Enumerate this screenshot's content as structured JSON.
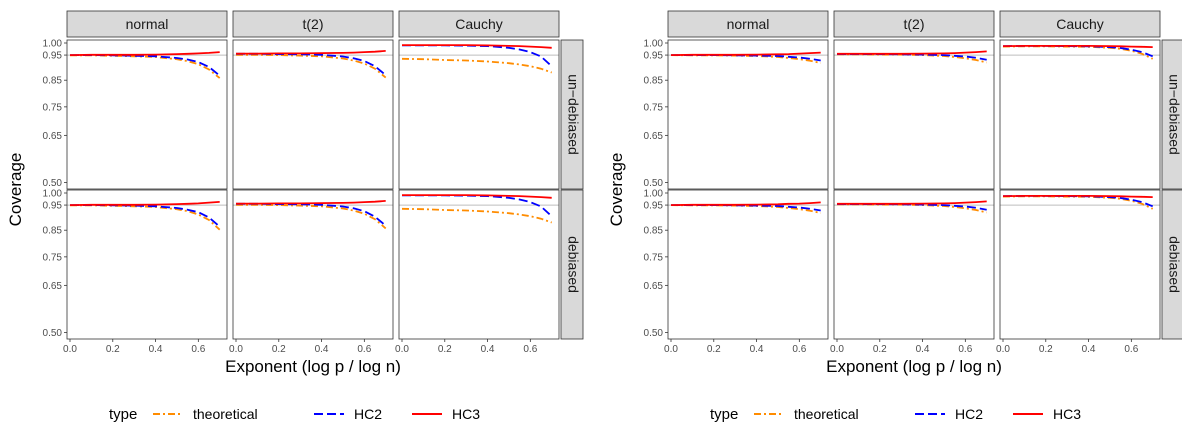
{
  "colors": {
    "theoretical": "#FF8C00",
    "HC2": "#0000FF",
    "HC3": "#FF0000",
    "strip_bg": "#D9D9D9",
    "reference_line": "#BEBEBE"
  },
  "chart_data": [
    {
      "type": "line",
      "facets": {
        "columns": [
          "normal",
          "t(2)",
          "Cauchy"
        ],
        "rows": [
          "un−debiased",
          "debiased"
        ]
      },
      "xlabel": "Exponent (log p / log n)",
      "ylabel": "Coverage",
      "xlim": [
        0,
        0.72
      ],
      "xticks": [
        "0.0",
        "0.2",
        "0.4",
        "0.6"
      ],
      "y_scale": "sqrt",
      "ylim": [
        0.49,
        1.0
      ],
      "yticks": [
        "0.50",
        "0.65",
        "0.75",
        "0.85",
        "0.95",
        "1.00"
      ],
      "reference_line": 0.95,
      "legend": {
        "title": "type",
        "entries": [
          "theoretical",
          "HC2",
          "HC3"
        ],
        "position": "bottom"
      },
      "x": [
        0.0,
        0.1,
        0.2,
        0.3,
        0.4,
        0.5,
        0.55,
        0.6,
        0.65,
        0.7
      ],
      "panels": [
        {
          "row": "un−debiased",
          "col": "normal",
          "series": [
            {
              "name": "theoretical",
              "values": [
                0.949,
                0.949,
                0.947,
                0.945,
                0.942,
                0.933,
                0.925,
                0.913,
                0.892,
                0.858
              ]
            },
            {
              "name": "HC2",
              "values": [
                0.95,
                0.95,
                0.949,
                0.947,
                0.945,
                0.938,
                0.932,
                0.922,
                0.902,
                0.868
              ]
            },
            {
              "name": "HC3",
              "values": [
                0.95,
                0.951,
                0.951,
                0.951,
                0.952,
                0.954,
                0.955,
                0.957,
                0.959,
                0.962
              ]
            }
          ]
        },
        {
          "row": "un−debiased",
          "col": "t(2)",
          "series": [
            {
              "name": "theoretical",
              "values": [
                0.951,
                0.951,
                0.95,
                0.948,
                0.945,
                0.936,
                0.928,
                0.916,
                0.895,
                0.86
              ]
            },
            {
              "name": "HC2",
              "values": [
                0.955,
                0.955,
                0.954,
                0.953,
                0.951,
                0.944,
                0.937,
                0.926,
                0.905,
                0.87
              ]
            },
            {
              "name": "HC3",
              "values": [
                0.956,
                0.956,
                0.957,
                0.957,
                0.958,
                0.959,
                0.96,
                0.962,
                0.964,
                0.967
              ]
            }
          ]
        },
        {
          "row": "un−debiased",
          "col": "Cauchy",
          "series": [
            {
              "name": "theoretical",
              "values": [
                0.935,
                0.933,
                0.93,
                0.928,
                0.924,
                0.917,
                0.912,
                0.905,
                0.895,
                0.88
              ]
            },
            {
              "name": "HC2",
              "values": [
                0.99,
                0.99,
                0.99,
                0.989,
                0.987,
                0.98,
                0.973,
                0.962,
                0.944,
                0.905
              ]
            },
            {
              "name": "HC3",
              "values": [
                0.991,
                0.991,
                0.991,
                0.991,
                0.99,
                0.988,
                0.987,
                0.985,
                0.983,
                0.98
              ]
            }
          ]
        },
        {
          "row": "debiased",
          "col": "normal",
          "series": [
            {
              "name": "theoretical",
              "values": [
                0.949,
                0.949,
                0.947,
                0.945,
                0.942,
                0.933,
                0.925,
                0.912,
                0.89,
                0.852
              ]
            },
            {
              "name": "HC2",
              "values": [
                0.95,
                0.95,
                0.949,
                0.948,
                0.945,
                0.938,
                0.931,
                0.921,
                0.9,
                0.864
              ]
            },
            {
              "name": "HC3",
              "values": [
                0.95,
                0.951,
                0.951,
                0.951,
                0.952,
                0.954,
                0.955,
                0.957,
                0.96,
                0.963
              ]
            }
          ]
        },
        {
          "row": "debiased",
          "col": "t(2)",
          "series": [
            {
              "name": "theoretical",
              "values": [
                0.951,
                0.951,
                0.95,
                0.948,
                0.945,
                0.936,
                0.928,
                0.915,
                0.893,
                0.857
              ]
            },
            {
              "name": "HC2",
              "values": [
                0.955,
                0.955,
                0.954,
                0.953,
                0.951,
                0.944,
                0.937,
                0.925,
                0.903,
                0.868
              ]
            },
            {
              "name": "HC3",
              "values": [
                0.956,
                0.956,
                0.957,
                0.957,
                0.958,
                0.959,
                0.96,
                0.962,
                0.964,
                0.967
              ]
            }
          ]
        },
        {
          "row": "debiased",
          "col": "Cauchy",
          "series": [
            {
              "name": "theoretical",
              "values": [
                0.935,
                0.933,
                0.93,
                0.928,
                0.924,
                0.917,
                0.912,
                0.905,
                0.895,
                0.88
              ]
            },
            {
              "name": "HC2",
              "values": [
                0.99,
                0.99,
                0.99,
                0.989,
                0.987,
                0.98,
                0.973,
                0.962,
                0.944,
                0.905
              ]
            },
            {
              "name": "HC3",
              "values": [
                0.991,
                0.991,
                0.991,
                0.991,
                0.99,
                0.988,
                0.987,
                0.985,
                0.983,
                0.98
              ]
            }
          ]
        }
      ]
    },
    {
      "type": "line",
      "facets": {
        "columns": [
          "normal",
          "t(2)",
          "Cauchy"
        ],
        "rows": [
          "un−debiased",
          "debiased"
        ]
      },
      "xlabel": "Exponent (log p / log n)",
      "ylabel": "Coverage",
      "xlim": [
        0,
        0.72
      ],
      "xticks": [
        "0.0",
        "0.2",
        "0.4",
        "0.6"
      ],
      "y_scale": "sqrt",
      "ylim": [
        0.49,
        1.0
      ],
      "yticks": [
        "0.50",
        "0.65",
        "0.75",
        "0.85",
        "0.95",
        "1.00"
      ],
      "reference_line": 0.95,
      "legend": {
        "title": "type",
        "entries": [
          "theoretical",
          "HC2",
          "HC3"
        ],
        "position": "bottom"
      },
      "x": [
        0.0,
        0.1,
        0.2,
        0.3,
        0.4,
        0.5,
        0.55,
        0.6,
        0.65,
        0.7
      ],
      "panels": [
        {
          "row": "un−debiased",
          "col": "normal",
          "series": [
            {
              "name": "theoretical",
              "values": [
                0.95,
                0.949,
                0.949,
                0.948,
                0.946,
                0.942,
                0.938,
                0.933,
                0.927,
                0.918
              ]
            },
            {
              "name": "HC2",
              "values": [
                0.95,
                0.95,
                0.95,
                0.949,
                0.948,
                0.946,
                0.943,
                0.94,
                0.935,
                0.928
              ]
            },
            {
              "name": "HC3",
              "values": [
                0.95,
                0.951,
                0.951,
                0.951,
                0.952,
                0.953,
                0.954,
                0.956,
                0.958,
                0.96
              ]
            }
          ]
        },
        {
          "row": "un−debiased",
          "col": "t(2)",
          "series": [
            {
              "name": "theoretical",
              "values": [
                0.953,
                0.953,
                0.952,
                0.952,
                0.95,
                0.946,
                0.942,
                0.937,
                0.93,
                0.92
              ]
            },
            {
              "name": "HC2",
              "values": [
                0.954,
                0.954,
                0.954,
                0.953,
                0.952,
                0.95,
                0.947,
                0.944,
                0.939,
                0.931
              ]
            },
            {
              "name": "HC3",
              "values": [
                0.955,
                0.955,
                0.955,
                0.955,
                0.956,
                0.957,
                0.958,
                0.96,
                0.962,
                0.965
              ]
            }
          ]
        },
        {
          "row": "un−debiased",
          "col": "Cauchy",
          "series": [
            {
              "name": "theoretical",
              "values": [
                0.985,
                0.986,
                0.986,
                0.985,
                0.984,
                0.98,
                0.976,
                0.968,
                0.955,
                0.935
              ]
            },
            {
              "name": "HC2",
              "values": [
                0.987,
                0.988,
                0.988,
                0.987,
                0.986,
                0.983,
                0.979,
                0.972,
                0.962,
                0.945
              ]
            },
            {
              "name": "HC3",
              "values": [
                0.987,
                0.988,
                0.988,
                0.988,
                0.988,
                0.987,
                0.986,
                0.985,
                0.984,
                0.983
              ]
            }
          ]
        },
        {
          "row": "debiased",
          "col": "normal",
          "series": [
            {
              "name": "theoretical",
              "values": [
                0.95,
                0.949,
                0.949,
                0.948,
                0.946,
                0.942,
                0.938,
                0.933,
                0.927,
                0.918
              ]
            },
            {
              "name": "HC2",
              "values": [
                0.95,
                0.95,
                0.95,
                0.949,
                0.948,
                0.946,
                0.943,
                0.94,
                0.935,
                0.928
              ]
            },
            {
              "name": "HC3",
              "values": [
                0.95,
                0.951,
                0.951,
                0.951,
                0.952,
                0.953,
                0.955,
                0.956,
                0.958,
                0.961
              ]
            }
          ]
        },
        {
          "row": "debiased",
          "col": "t(2)",
          "series": [
            {
              "name": "theoretical",
              "values": [
                0.953,
                0.953,
                0.952,
                0.952,
                0.95,
                0.946,
                0.942,
                0.937,
                0.93,
                0.92
              ]
            },
            {
              "name": "HC2",
              "values": [
                0.954,
                0.954,
                0.954,
                0.953,
                0.952,
                0.95,
                0.947,
                0.944,
                0.939,
                0.931
              ]
            },
            {
              "name": "HC3",
              "values": [
                0.955,
                0.955,
                0.955,
                0.955,
                0.956,
                0.957,
                0.958,
                0.96,
                0.962,
                0.965
              ]
            }
          ]
        },
        {
          "row": "debiased",
          "col": "Cauchy",
          "series": [
            {
              "name": "theoretical",
              "values": [
                0.985,
                0.986,
                0.986,
                0.985,
                0.984,
                0.98,
                0.976,
                0.968,
                0.955,
                0.935
              ]
            },
            {
              "name": "HC2",
              "values": [
                0.987,
                0.988,
                0.988,
                0.987,
                0.986,
                0.983,
                0.979,
                0.972,
                0.962,
                0.945
              ]
            },
            {
              "name": "HC3",
              "values": [
                0.987,
                0.988,
                0.988,
                0.988,
                0.988,
                0.987,
                0.986,
                0.985,
                0.984,
                0.983
              ]
            }
          ]
        }
      ]
    }
  ]
}
